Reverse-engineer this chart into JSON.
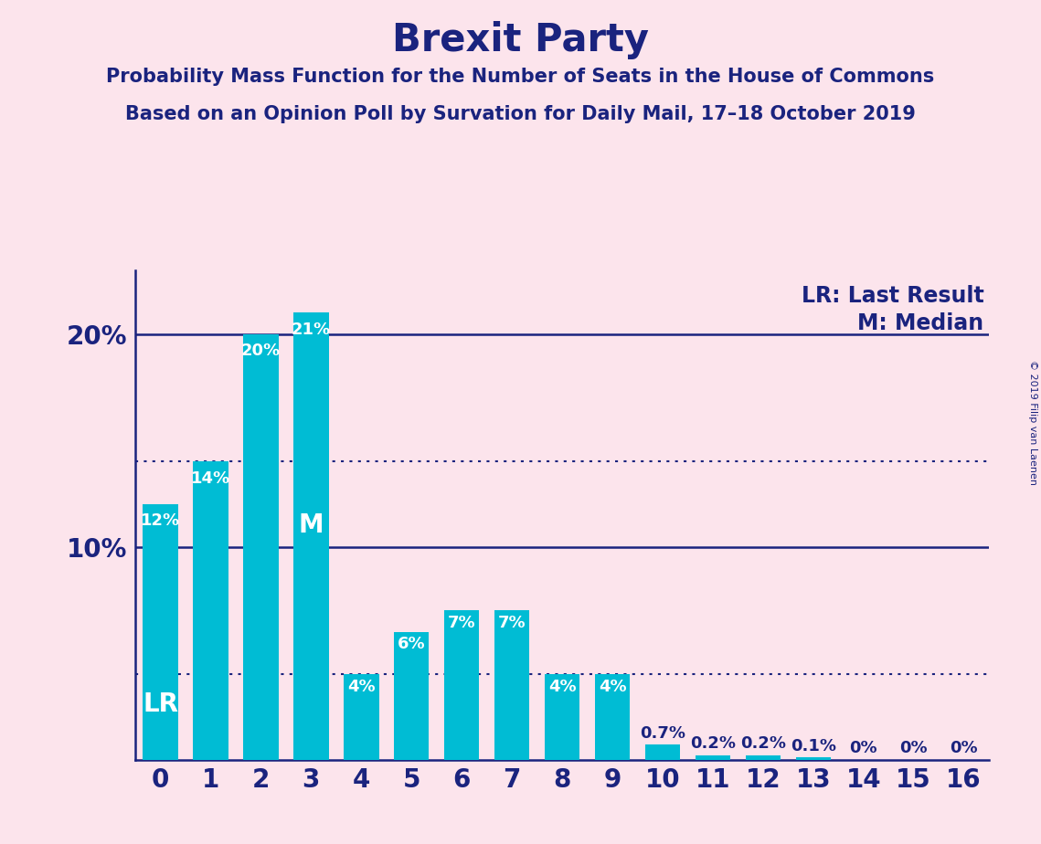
{
  "title": "Brexit Party",
  "subtitle1": "Probability Mass Function for the Number of Seats in the House of Commons",
  "subtitle2": "Based on an Opinion Poll by Survation for Daily Mail, 17–18 October 2019",
  "categories": [
    0,
    1,
    2,
    3,
    4,
    5,
    6,
    7,
    8,
    9,
    10,
    11,
    12,
    13,
    14,
    15,
    16
  ],
  "values": [
    12,
    14,
    20,
    21,
    4,
    6,
    7,
    7,
    4,
    4,
    0.7,
    0.2,
    0.2,
    0.1,
    0,
    0,
    0
  ],
  "labels": [
    "12%",
    "14%",
    "20%",
    "21%",
    "4%",
    "6%",
    "7%",
    "7%",
    "4%",
    "4%",
    "0.7%",
    "0.2%",
    "0.2%",
    "0.1%",
    "0%",
    "0%",
    "0%"
  ],
  "bar_color": "#00bcd4",
  "background_color": "#fce4ec",
  "text_color": "#1a237e",
  "solid_line_20pct": 20,
  "solid_line_10pct": 10,
  "dotted_line_14pct": 14,
  "dotted_line_4pct": 4,
  "lr_bar_index": 0,
  "median_bar_index": 3,
  "lr_label": "LR",
  "median_label": "M",
  "legend_lr": "LR: Last Result",
  "legend_m": "M: Median",
  "copyright_text": "© 2019 Filip van Laenen",
  "ylim_max": 23,
  "title_fontsize": 30,
  "subtitle_fontsize": 15,
  "axis_tick_fontsize": 20,
  "bar_label_fontsize": 13,
  "inside_label_fontsize": 20,
  "legend_fontsize": 17
}
